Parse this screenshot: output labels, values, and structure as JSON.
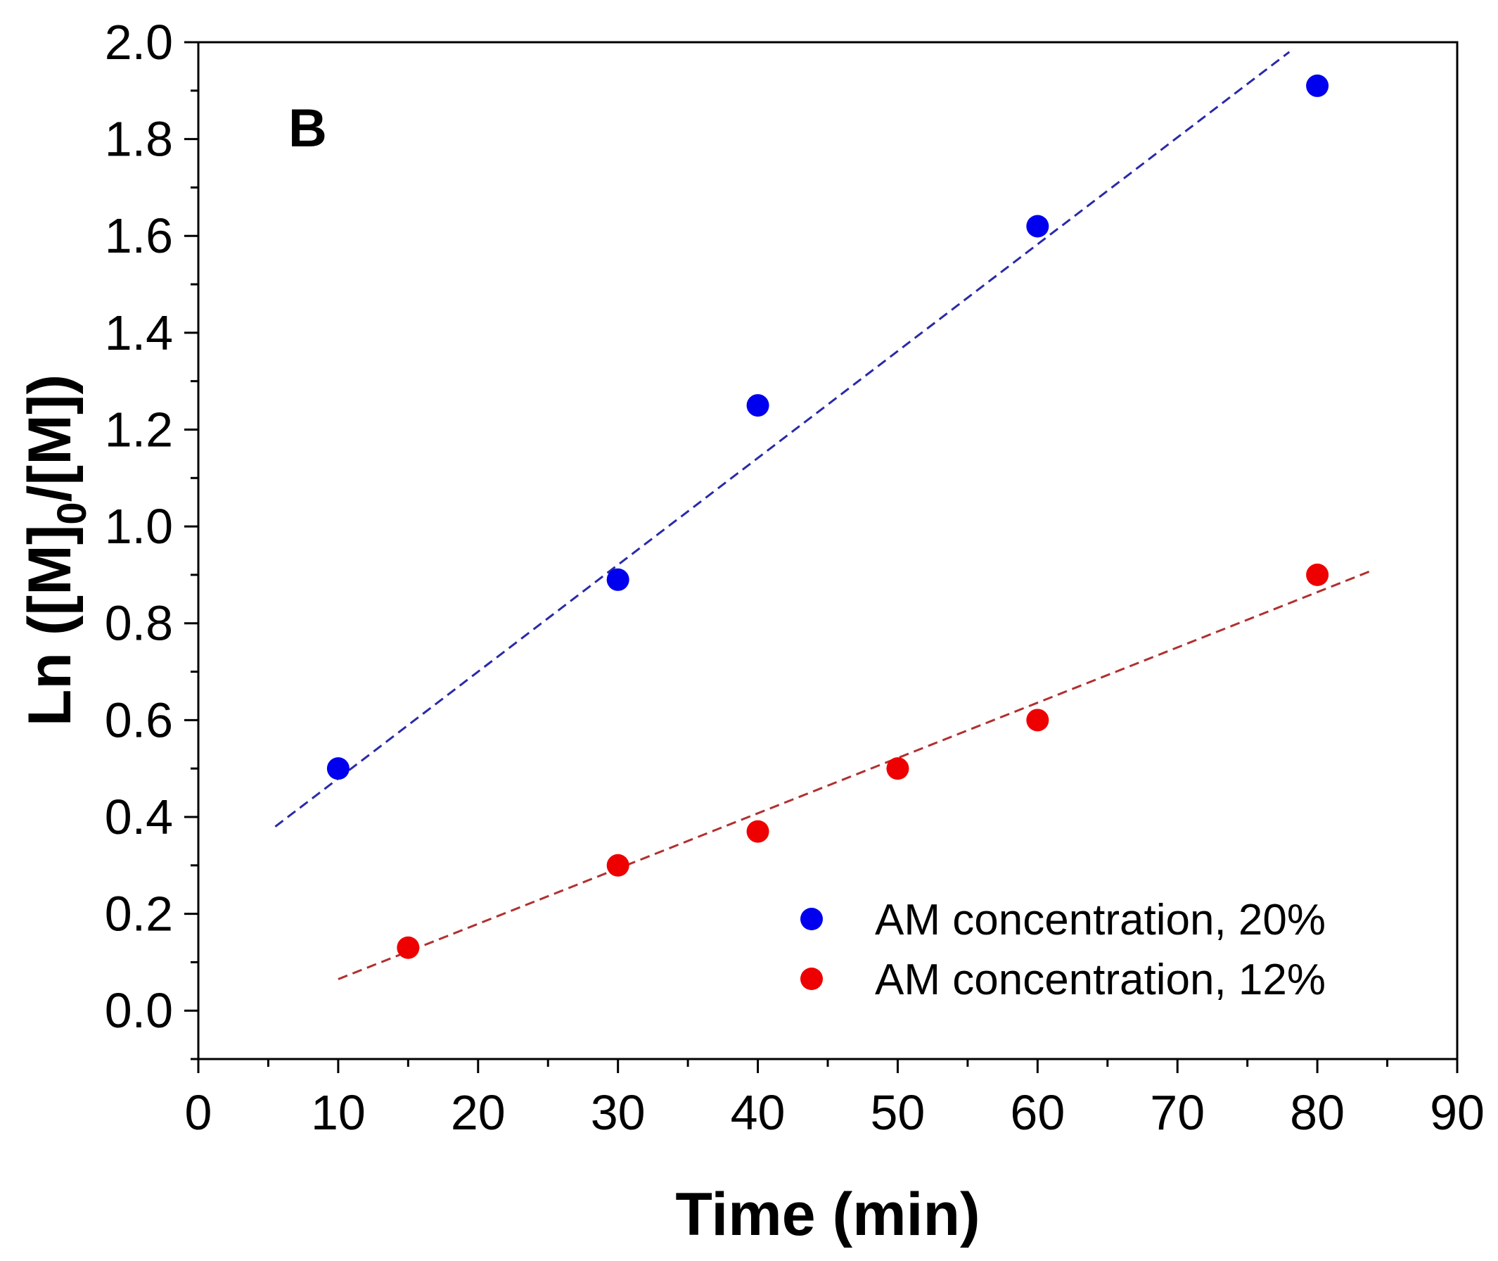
{
  "chart_data": {
    "type": "scatter",
    "panel_label": "B",
    "xlabel": "Time (min)",
    "ylabel": {
      "prefix": "Ln ([M]",
      "subscript": "0",
      "suffix": "/[M])"
    },
    "xlim": [
      0,
      90
    ],
    "ylim": [
      -0.1,
      2.0
    ],
    "xticks": [
      0,
      10,
      20,
      30,
      40,
      50,
      60,
      70,
      80,
      90
    ],
    "yticks": [
      0.0,
      0.2,
      0.4,
      0.6,
      0.8,
      1.0,
      1.2,
      1.4,
      1.6,
      1.8,
      2.0
    ],
    "ytick_labels": [
      "0.0",
      "0.2",
      "0.4",
      "0.6",
      "0.8",
      "1.0",
      "1.2",
      "1.4",
      "1.6",
      "1.8",
      "2.0"
    ],
    "grid": false,
    "legend_position": "bottom-right",
    "series": [
      {
        "name": "AM concentration, 20%",
        "color": "#0000ee",
        "x": [
          10,
          30,
          40,
          60,
          80
        ],
        "y": [
          0.5,
          0.89,
          1.25,
          1.62,
          1.91
        ],
        "fit": {
          "color": "#2a2aa8",
          "x": [
            5.5,
            78
          ],
          "y": [
            0.38,
            1.98
          ]
        }
      },
      {
        "name": "AM concentration, 12%",
        "color": "#ee0000",
        "x": [
          15,
          30,
          40,
          50,
          60,
          80
        ],
        "y": [
          0.13,
          0.3,
          0.37,
          0.5,
          0.6,
          0.9
        ],
        "fit": {
          "color": "#b03030",
          "x": [
            10,
            84
          ],
          "y": [
            0.065,
            0.91
          ]
        }
      }
    ]
  }
}
